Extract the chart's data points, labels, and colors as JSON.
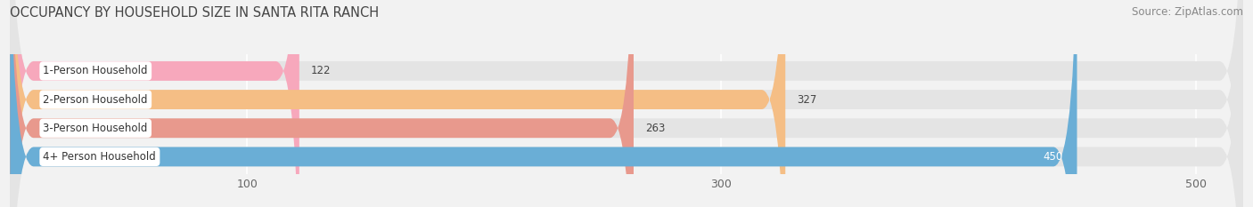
{
  "title": "OCCUPANCY BY HOUSEHOLD SIZE IN SANTA RITA RANCH",
  "source": "Source: ZipAtlas.com",
  "categories": [
    "1-Person Household",
    "2-Person Household",
    "3-Person Household",
    "4+ Person Household"
  ],
  "values": [
    122,
    327,
    263,
    450
  ],
  "bar_colors": [
    "#f7a8bc",
    "#f5be85",
    "#e8998d",
    "#6aaed6"
  ],
  "background_color": "#f2f2f2",
  "bar_background_color": "#e4e4e4",
  "xlim": [
    0,
    520
  ],
  "xticks": [
    100,
    300,
    500
  ],
  "label_box_color": "#ffffff",
  "title_fontsize": 10.5,
  "source_fontsize": 8.5,
  "bar_height": 0.68,
  "figsize": [
    14.06,
    2.33
  ],
  "dpi": 100,
  "value_label_inside_last": true,
  "tick_label_color": "#666666",
  "bar_label_fontsize": 8.5,
  "value_label_fontsize": 8.5
}
